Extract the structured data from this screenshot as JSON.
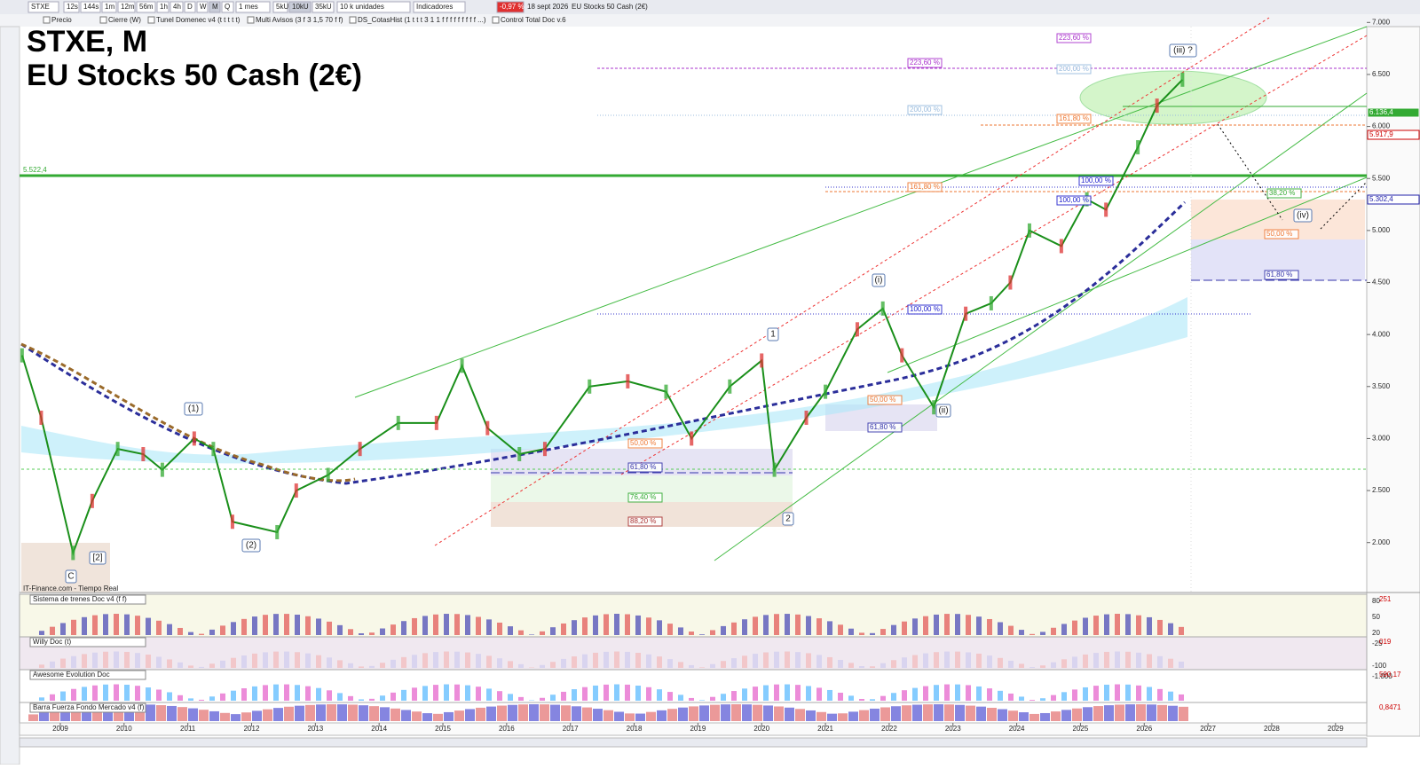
{
  "toolbar": {
    "symbol": "STXE",
    "timeframes": [
      "12s",
      "144s",
      "1m",
      "12m",
      "56m",
      "1h",
      "4h",
      "D",
      "W",
      "M",
      "Q"
    ],
    "period": "1 mes",
    "units": [
      "5kU",
      "10kU",
      "35kU"
    ],
    "units_menu": "10 k unidades",
    "indicators": "Indicadores",
    "change": "-0,97 %",
    "date": "18 sept 2026",
    "instrument": "EU Stocks 50 Cash (2€)"
  },
  "studies": [
    "Precio",
    "Cierre (W)",
    "Tunel Domenec v4 (t t t t t)",
    "Multi Avisos (3 f 3 1,5 70 f f)",
    "DS_CotasHist (1 t t t 3 1 1 f f f f f f f f f ...)",
    "Control Total Doc v.6"
  ],
  "chart": {
    "title": "STXE, M",
    "subtitle": "EU Stocks 50 Cash (2€)",
    "source": "IT-Finance.com - Tiempo Real",
    "level_label": "5.522,4",
    "xlim": [
      2008.36,
      2029.49
    ],
    "ylim": [
      1520,
      6960
    ],
    "xticks": [
      2009,
      2010,
      2011,
      2012,
      2013,
      2014,
      2015,
      2016,
      2017,
      2018,
      2019,
      2020,
      2021,
      2022,
      2023,
      2024,
      2025,
      2026,
      2027,
      2028,
      2029
    ],
    "yticks": [
      {
        "value": 2000,
        "label": "2.000"
      },
      {
        "value": 2500,
        "label": "2.500"
      },
      {
        "value": 3000,
        "label": "3.000"
      },
      {
        "value": 3500,
        "label": "3.500"
      },
      {
        "value": 4000,
        "label": "4.000"
      },
      {
        "value": 4500,
        "label": "4.500"
      },
      {
        "value": 5000,
        "label": "5.000"
      },
      {
        "value": 5500,
        "label": "5.500"
      },
      {
        "value": 6000,
        "label": "6.000"
      },
      {
        "value": 6500,
        "label": "6.500"
      },
      {
        "value": 7000,
        "label": "7.000"
      }
    ],
    "price": {
      "x": [
        2008.4,
        2008.7,
        2009.2,
        2009.5,
        2009.9,
        2010.3,
        2010.6,
        2011.1,
        2011.4,
        2011.7,
        2012.4,
        2012.7,
        2013.2,
        2013.7,
        2014.3,
        2014.9,
        2015.3,
        2015.7,
        2016.2,
        2016.6,
        2017.3,
        2017.9,
        2018.5,
        2018.9,
        2019.5,
        2020.0,
        2020.2,
        2020.7,
        2021.0,
        2021.5,
        2021.9,
        2022.2,
        2022.7,
        2023.2,
        2023.6,
        2023.9,
        2024.2,
        2024.7,
        2025.1,
        2025.4,
        2025.9,
        2026.2,
        2026.6
      ],
      "values": [
        3800,
        3200,
        1900,
        2400,
        2900,
        2850,
        2700,
        3000,
        2900,
        2200,
        2100,
        2500,
        2650,
        2900,
        3150,
        3150,
        3700,
        3100,
        2850,
        2900,
        3500,
        3550,
        3450,
        3000,
        3500,
        3750,
        2700,
        3200,
        3450,
        4050,
        4250,
        3800,
        3300,
        4200,
        4300,
        4500,
        5000,
        4850,
        5300,
        5200,
        5800,
        6200,
        6450
      ]
    },
    "price_labels": [
      "6.136,4",
      "5.917,9",
      "5.302,4"
    ],
    "fib_labels": [
      "223,60 %",
      "223,60 %",
      "200,00 %",
      "200,00 %",
      "161,80 %",
      "161,80 %",
      "100,00 %",
      "100,00 %",
      "100,00 %",
      "38,20 %",
      "50,00 %",
      "61,80 %",
      "50,00 %",
      "61,80 %",
      "50,00 %",
      "61,80 %",
      "76,40 %",
      "88,20 %"
    ],
    "wave_labels": [
      "(iii) ?",
      "(i)",
      "(ii)",
      "(iv)",
      "(1)",
      "(2)",
      "1",
      "2",
      "[2]",
      "C"
    ]
  },
  "panels": [
    {
      "name": "Sistema de trenes Doc v4 (f f)",
      "scale": [
        "80",
        "50",
        "20"
      ],
      "value": "251"
    },
    {
      "name": "Willy Doc (t)",
      "scale": [
        "-25",
        "-100"
      ],
      "value": "019"
    },
    {
      "name": "Awesome Evolution Doc",
      "scale": [
        "-1.000"
      ],
      "value": "590,17"
    },
    {
      "name": "Barra Fuerza Fondo Mercado v4 (f)",
      "scale": [],
      "value": "0,8471"
    }
  ]
}
